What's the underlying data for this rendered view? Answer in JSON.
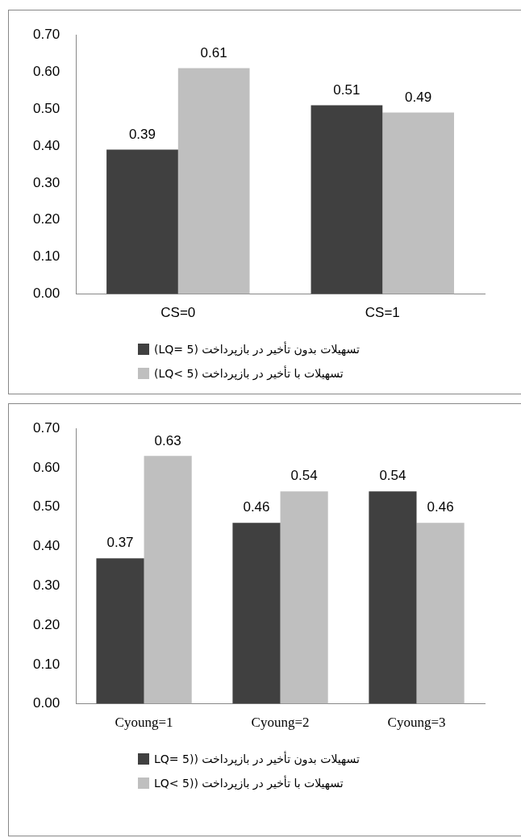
{
  "chart_data": [
    {
      "type": "bar",
      "categories": [
        "CS=0",
        "CS=1"
      ],
      "series": [
        {
          "name": "تسهیلات بدون تأخیر در بازپرداخت (LQ= 5)",
          "color": "#404040",
          "values": [
            0.39,
            0.51
          ]
        },
        {
          "name": "تسهیلات با تأخیر در بازپرداخت (LQ< 5)",
          "color": "#bfbfbf",
          "values": [
            0.61,
            0.49
          ]
        }
      ],
      "ylim": [
        0,
        0.7
      ],
      "yticks": [
        {
          "value": 0,
          "label": "0.00"
        },
        {
          "value": 0.1,
          "label": "0.10"
        },
        {
          "value": 0.2,
          "label": "0.20"
        },
        {
          "value": 0.3,
          "label": "0.30"
        },
        {
          "value": 0.4,
          "label": "0.40"
        },
        {
          "value": 0.5,
          "label": "0.50"
        },
        {
          "value": 0.6,
          "label": "0.60"
        },
        {
          "value": 0.7,
          "label": "0.70"
        }
      ],
      "data_labels": true,
      "legend": "bottom",
      "grid": false
    },
    {
      "type": "bar",
      "categories": [
        "Cyoung=1",
        "Cyoung=2",
        "Cyoung=3"
      ],
      "series": [
        {
          "name": "تسهیلات بدون تأخیر در بازپرداخت ((LQ= 5",
          "color": "#404040",
          "values": [
            0.37,
            0.46,
            0.54
          ]
        },
        {
          "name": "تسهیلات با تأخیر در بازپرداخت ((LQ< 5",
          "color": "#bfbfbf",
          "values": [
            0.63,
            0.54,
            0.46
          ]
        }
      ],
      "ylim": [
        0,
        0.7
      ],
      "yticks": [
        {
          "value": 0,
          "label": "0.00"
        },
        {
          "value": 0.1,
          "label": "0.10"
        },
        {
          "value": 0.2,
          "label": "0.20"
        },
        {
          "value": 0.3,
          "label": "0.30"
        },
        {
          "value": 0.4,
          "label": "0.40"
        },
        {
          "value": 0.5,
          "label": "0.50"
        },
        {
          "value": 0.6,
          "label": "0.60"
        },
        {
          "value": 0.7,
          "label": "0.70"
        }
      ],
      "data_labels": true,
      "legend": "bottom",
      "grid": false
    }
  ]
}
